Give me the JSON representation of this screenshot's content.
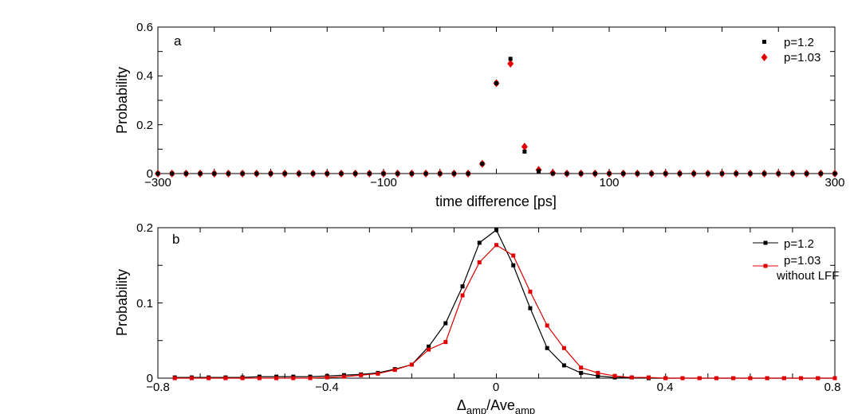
{
  "chart_data": [
    {
      "type": "scatter",
      "panel_label": "a",
      "xlabel": "time difference [ps]",
      "ylabel": "Probability",
      "xlim": [
        -300,
        300
      ],
      "ylim": [
        0,
        0.6
      ],
      "x_ticks": [
        -300,
        -100,
        100,
        300
      ],
      "x_tick_labels": [
        "−300",
        "−100",
        "100",
        "300"
      ],
      "y_ticks": [
        0,
        0.2,
        0.4,
        0.6
      ],
      "y_tick_labels": [
        "0",
        "0.2",
        "0.4",
        "0.6"
      ],
      "legend_position": "top-right",
      "x": [
        -300,
        -287.5,
        -275,
        -262.5,
        -250,
        -237.5,
        -225,
        -212.5,
        -200,
        -187.5,
        -175,
        -162.5,
        -150,
        -137.5,
        -125,
        -112.5,
        -100,
        -87.5,
        -75,
        -62.5,
        -50,
        -37.5,
        -25,
        -12.5,
        0,
        12.5,
        25,
        37.5,
        50,
        62.5,
        75,
        87.5,
        100,
        112.5,
        125,
        137.5,
        150,
        162.5,
        175,
        187.5,
        200,
        212.5,
        225,
        237.5,
        250,
        262.5,
        275,
        287.5,
        300
      ],
      "series": [
        {
          "name": "p=1.2",
          "color": "#000000",
          "marker": "square",
          "values": [
            0,
            0,
            0,
            0,
            0,
            0,
            0,
            0,
            0,
            0,
            0,
            0,
            0,
            0,
            0,
            0,
            0,
            0,
            0,
            0,
            0,
            0,
            0,
            0.04,
            0.37,
            0.47,
            0.09,
            0.01,
            0,
            0,
            0,
            0,
            0,
            0,
            0,
            0,
            0,
            0,
            0,
            0,
            0,
            0,
            0,
            0,
            0,
            0,
            0,
            0,
            0
          ]
        },
        {
          "name": "p=1.03",
          "color": "#e00000",
          "marker": "diamond",
          "values": [
            0,
            0,
            0,
            0,
            0,
            0,
            0,
            0,
            0,
            0,
            0,
            0,
            0,
            0,
            0,
            0,
            0,
            0,
            0,
            0,
            0,
            0,
            0,
            0.04,
            0.37,
            0.45,
            0.11,
            0.015,
            0.003,
            0,
            0,
            0,
            0,
            0,
            0,
            0,
            0,
            0,
            0,
            0,
            0,
            0,
            0,
            0,
            0,
            0,
            0,
            0,
            0
          ]
        }
      ]
    },
    {
      "type": "line",
      "panel_label": "b",
      "xlabel_main": "Δ",
      "xlabel_sub1": "amp",
      "xlabel_mid": "/Ave",
      "xlabel_sub2": "amp",
      "ylabel": "Probability",
      "xlim": [
        -0.8,
        0.8
      ],
      "ylim": [
        0,
        0.2
      ],
      "x_ticks": [
        -0.8,
        -0.4,
        0,
        0.4,
        0.8
      ],
      "x_tick_labels": [
        "−0.8",
        "−0.4",
        "0",
        "0.4",
        "0.8"
      ],
      "y_ticks": [
        0,
        0.1,
        0.2
      ],
      "y_tick_labels": [
        "0",
        "0.1",
        "0.2"
      ],
      "legend_position": "top-right",
      "x": [
        -0.76,
        -0.72,
        -0.68,
        -0.64,
        -0.6,
        -0.56,
        -0.52,
        -0.48,
        -0.44,
        -0.4,
        -0.36,
        -0.32,
        -0.28,
        -0.24,
        -0.2,
        -0.16,
        -0.12,
        -0.08,
        -0.04,
        0,
        0.04,
        0.08,
        0.12,
        0.16,
        0.2,
        0.24,
        0.28,
        0.32,
        0.36,
        0.4,
        0.44,
        0.48,
        0.52,
        0.56,
        0.6,
        0.64,
        0.68,
        0.72,
        0.76,
        0.8
      ],
      "series": [
        {
          "name": "p=1.2",
          "color": "#000000",
          "marker": "square",
          "values": [
            0.001,
            0.001,
            0.001,
            0.001,
            0.001,
            0.002,
            0.002,
            0.002,
            0.002,
            0.003,
            0.004,
            0.005,
            0.007,
            0.012,
            0.018,
            0.042,
            0.073,
            0.122,
            0.18,
            0.197,
            0.15,
            0.093,
            0.04,
            0.017,
            0.007,
            0.003,
            0.001,
            0.001,
            0,
            0,
            0,
            0,
            0,
            0,
            0,
            0,
            0,
            0,
            0,
            0
          ]
        },
        {
          "name_line1": "p=1.03",
          "name_line2": "without LFF",
          "color": "#e00000",
          "marker": "square",
          "values": [
            0,
            0,
            0,
            0,
            0,
            0,
            0,
            0,
            0,
            0.001,
            0.002,
            0.004,
            0.006,
            0.011,
            0.018,
            0.038,
            0.048,
            0.11,
            0.154,
            0.177,
            0.163,
            0.115,
            0.07,
            0.04,
            0.014,
            0.007,
            0.003,
            0.001,
            0.001,
            0,
            0,
            0,
            0,
            0,
            0,
            0,
            0,
            0,
            0,
            0
          ]
        }
      ]
    }
  ]
}
